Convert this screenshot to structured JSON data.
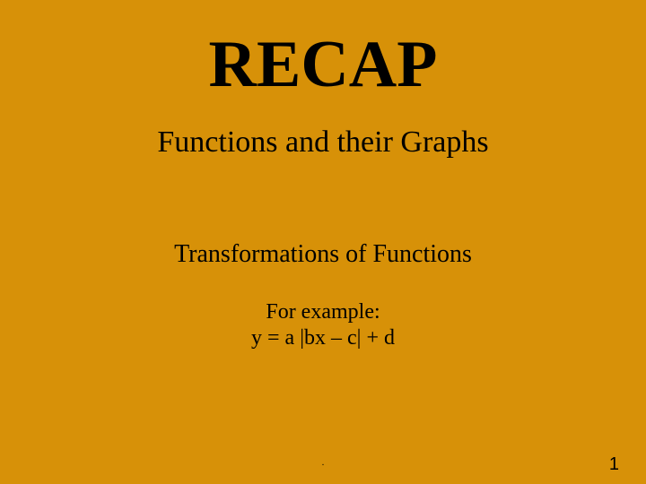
{
  "slide": {
    "background_color": "#d79108",
    "text_color": "#000000",
    "title": "RECAP",
    "subtitle": "Functions and their Graphs",
    "section_title": "Transformations of Functions",
    "example_label": "For example:",
    "equation": "y = a |bx – c| + d",
    "footer_mark": ".",
    "page_number": "1",
    "title_fontsize": 74,
    "subtitle_fontsize": 34,
    "section_fontsize": 28,
    "example_fontsize": 24,
    "font_family": "Times New Roman"
  }
}
